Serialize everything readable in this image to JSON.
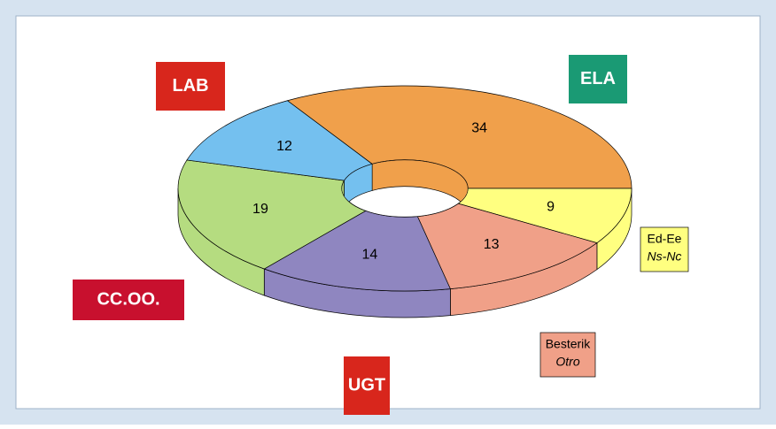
{
  "chart_data": {
    "type": "donut3d",
    "categories": [
      "ELA",
      "Ed-Ee",
      "Besterik",
      "UGT",
      "CC.OO.",
      "LAB"
    ],
    "category_sublabels": [
      null,
      "Ns-Nc",
      "Otro",
      null,
      null,
      null
    ],
    "values": [
      34,
      9,
      13,
      14,
      19,
      12
    ],
    "colors": [
      "#f0a04b",
      "#ffff80",
      "#f0a088",
      "#8f86c0",
      "#b5dc80",
      "#74c0ef"
    ]
  }
}
